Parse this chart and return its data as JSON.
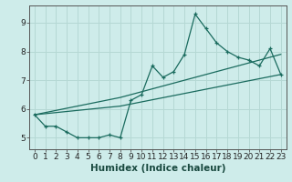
{
  "title": "",
  "xlabel": "Humidex (Indice chaleur)",
  "ylabel": "",
  "xlim": [
    -0.5,
    23.5
  ],
  "ylim": [
    4.6,
    9.6
  ],
  "yticks": [
    5,
    6,
    7,
    8,
    9
  ],
  "xticks": [
    0,
    1,
    2,
    3,
    4,
    5,
    6,
    7,
    8,
    9,
    10,
    11,
    12,
    13,
    14,
    15,
    16,
    17,
    18,
    19,
    20,
    21,
    22,
    23
  ],
  "bg_color": "#ceecea",
  "line_color": "#1a6b5e",
  "grid_color": "#b5d8d4",
  "line1_x": [
    0,
    1,
    2,
    3,
    4,
    5,
    6,
    7,
    8,
    9,
    10,
    11,
    12,
    13,
    14,
    15,
    16,
    17,
    18,
    19,
    20,
    21,
    22,
    23
  ],
  "line1_y": [
    5.8,
    5.4,
    5.4,
    5.2,
    5.0,
    5.0,
    5.0,
    5.1,
    5.0,
    6.3,
    6.5,
    7.5,
    7.1,
    7.3,
    7.9,
    9.3,
    8.8,
    8.3,
    8.0,
    7.8,
    7.7,
    7.5,
    8.1,
    7.2
  ],
  "line2_x": [
    0,
    8,
    23
  ],
  "line2_y": [
    5.8,
    6.1,
    7.2
  ],
  "line3_x": [
    0,
    8,
    23
  ],
  "line3_y": [
    5.8,
    6.4,
    7.9
  ],
  "tick_fontsize": 6.5,
  "label_fontsize": 7.5
}
